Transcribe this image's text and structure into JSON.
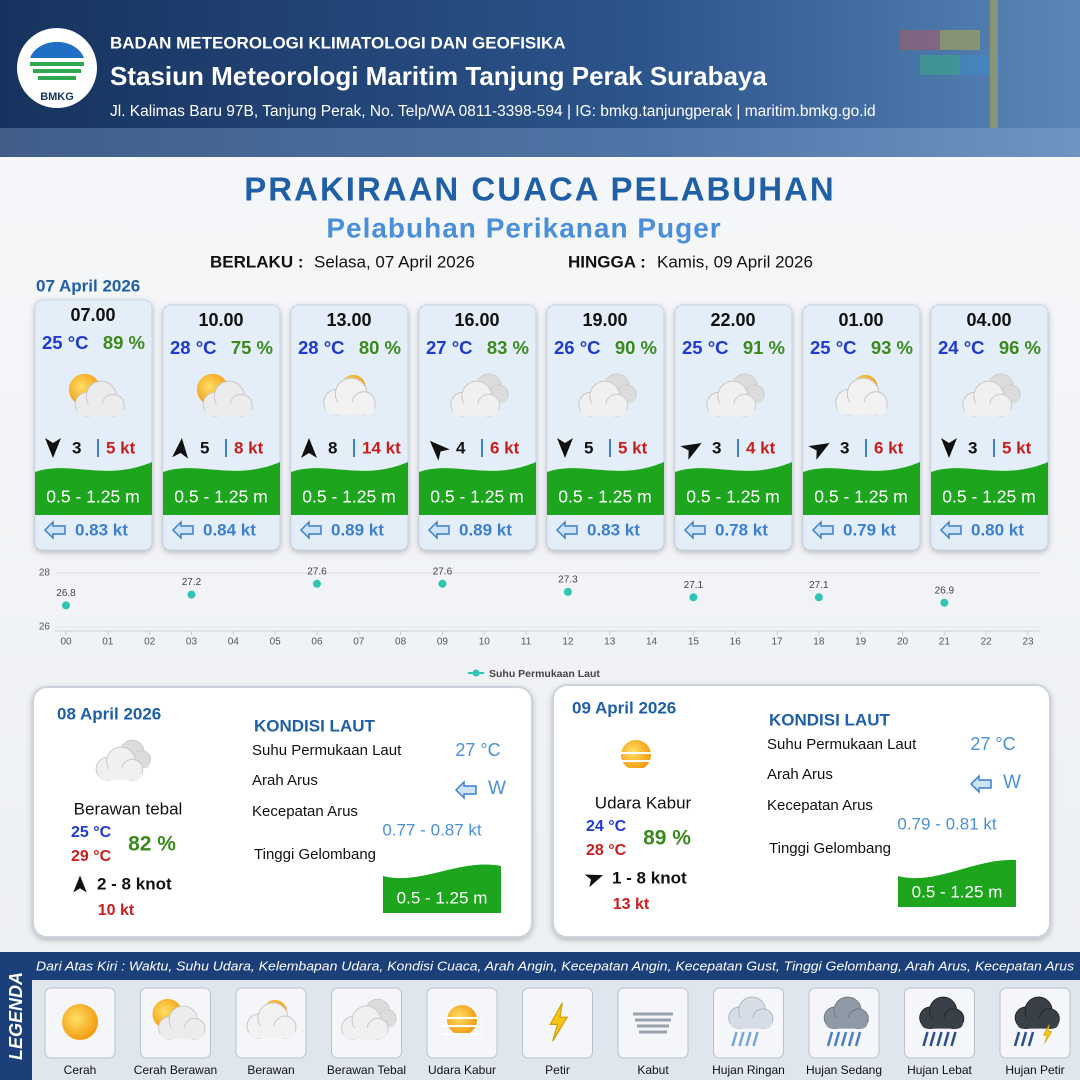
{
  "header": {
    "logo": "BMKG",
    "agency": "BADAN METEOROLOGI KLIMATOLOGI DAN GEOFISIKA",
    "station": "Stasiun Meteorologi Maritim Tanjung Perak Surabaya",
    "address": "Jl. Kalimas Baru 97B, Tanjung Perak, No. Telp/WA 0811-3398-594 | IG: bmkg.tanjungperak | maritim.bmkg.go.id"
  },
  "title": "PRAKIRAAN CUACA PELABUHAN",
  "subtitle": "Pelabuhan Perikanan Puger",
  "validity": {
    "from_label": "BERLAKU :",
    "from": "Selasa, 07 April 2026",
    "to_label": "HINGGA :",
    "to": "Kamis, 09 April 2026"
  },
  "day1": {
    "date": "07 April 2026",
    "cards": [
      {
        "time": "07.00",
        "temp": "25 °C",
        "humidity": "89 %",
        "icon": 1,
        "wind_arrow_deg": 180,
        "wind": "3",
        "gust": "5 kt",
        "wave": "0.5 - 1.25 m",
        "current": "0.83 kt"
      },
      {
        "time": "10.00",
        "temp": "28 °C",
        "humidity": "75 %",
        "icon": 1,
        "wind_arrow_deg": 5,
        "wind": "5",
        "gust": "8 kt",
        "wave": "0.5 - 1.25 m",
        "current": "0.84 kt"
      },
      {
        "time": "13.00",
        "temp": "28 °C",
        "humidity": "80 %",
        "icon": 2,
        "wind_arrow_deg": 0,
        "wind": "8",
        "gust": "14 kt",
        "wave": "0.5 - 1.25 m",
        "current": "0.89 kt"
      },
      {
        "time": "16.00",
        "temp": "27 °C",
        "humidity": "83 %",
        "icon": 3,
        "wind_arrow_deg": 315,
        "wind": "4",
        "gust": "6 kt",
        "wave": "0.5 - 1.25 m",
        "current": "0.89 kt"
      },
      {
        "time": "19.00",
        "temp": "26 °C",
        "humidity": "90 %",
        "icon": 3,
        "wind_arrow_deg": 180,
        "wind": "5",
        "gust": "5 kt",
        "wave": "0.5 - 1.25 m",
        "current": "0.83 kt"
      },
      {
        "time": "22.00",
        "temp": "25 °C",
        "humidity": "91 %",
        "icon": 3,
        "wind_arrow_deg": 60,
        "wind": "3",
        "gust": "4 kt",
        "wave": "0.5 - 1.25 m",
        "current": "0.78 kt"
      },
      {
        "time": "01.00",
        "temp": "25 °C",
        "humidity": "93 %",
        "icon": 2,
        "wind_arrow_deg": 60,
        "wind": "3",
        "gust": "6 kt",
        "wave": "0.5 - 1.25 m",
        "current": "0.79 kt"
      },
      {
        "time": "04.00",
        "temp": "24 °C",
        "humidity": "96 %",
        "icon": 3,
        "wind_arrow_deg": 180,
        "wind": "3",
        "gust": "5 kt",
        "wave": "0.5 - 1.25 m",
        "current": "0.80 kt"
      }
    ]
  },
  "chart_data": {
    "type": "scatter",
    "x": [
      0,
      3,
      6,
      9,
      12,
      15,
      18,
      21
    ],
    "series": [
      {
        "name": "Suhu Permukaan Laut",
        "color": "#2ec4b6",
        "values": [
          26.8,
          27.2,
          27.6,
          27.6,
          27.3,
          27.1,
          27.1,
          26.9
        ]
      }
    ],
    "xlim": [
      0,
      23
    ],
    "xticks": [
      {
        "value": 0,
        "label": "00"
      },
      {
        "value": 1,
        "label": "01"
      },
      {
        "value": 2,
        "label": "02"
      },
      {
        "value": 3,
        "label": "03"
      },
      {
        "value": 4,
        "label": "04"
      },
      {
        "value": 5,
        "label": "05"
      },
      {
        "value": 6,
        "label": "06"
      },
      {
        "value": 7,
        "label": "07"
      },
      {
        "value": 8,
        "label": "08"
      },
      {
        "value": 9,
        "label": "09"
      },
      10,
      11,
      12,
      13,
      14,
      15,
      16,
      17,
      18,
      19,
      20,
      21,
      22,
      23
    ],
    "ylim": [
      26,
      28
    ],
    "yticks": [
      26,
      28
    ],
    "grid": true,
    "legend": "bottom"
  },
  "days": [
    {
      "date": "08 April 2026",
      "icon": 3,
      "condition": "Berawan tebal",
      "temp_min": "25 °C",
      "temp_max": "29 °C",
      "humidity": "82 %",
      "wind_arrow_deg": 0,
      "wind": "2 - 8 knot",
      "gust": "10 kt",
      "sea_title": "KONDISI LAUT",
      "sst_label": "Suhu Permukaan Laut",
      "sst": "27 °C",
      "current_dir_label": "Arah Arus",
      "current_dir": "W",
      "current_speed_label": "Kecepatan Arus",
      "current_speed": "0.77  - 0.87 kt",
      "wave_label": "Tinggi Gelombang",
      "wave": "0.5 - 1.25 m"
    },
    {
      "date": "09 April 2026",
      "icon": 4,
      "condition": "Udara Kabur",
      "temp_min": "24 °C",
      "temp_max": "28 °C",
      "humidity": "89 %",
      "wind_arrow_deg": 70,
      "wind": "1  - 8 knot",
      "gust": "13 kt",
      "sea_title": "KONDISI LAUT",
      "sst_label": "Suhu Permukaan Laut",
      "sst": "27 °C",
      "current_dir_label": "Arah Arus",
      "current_dir": "W",
      "current_speed_label": "Kecepatan Arus",
      "current_speed": "0.79 - 0.81 kt",
      "wave_label": "Tinggi Gelombang",
      "wave": "0.5 - 1.25 m"
    }
  ],
  "legend": {
    "title": "LEGENDA",
    "description": "Dari Atas Kiri : Waktu, Suhu Udara, Kelembapan Udara, Kondisi Cuaca, Arah Angin, Kecepatan Angin, Kecepatan Gust, Tinggi Gelombang, Arah Arus, Kecepatan Arus",
    "items": [
      "Cerah",
      "Cerah Berawan",
      "Berawan",
      "Berawan Tebal",
      "Udara Kabur",
      "Petir",
      "Kabut",
      "Hujan Ringan",
      "Hujan Sedang",
      "Hujan Lebat",
      "Hujan Petir"
    ]
  }
}
